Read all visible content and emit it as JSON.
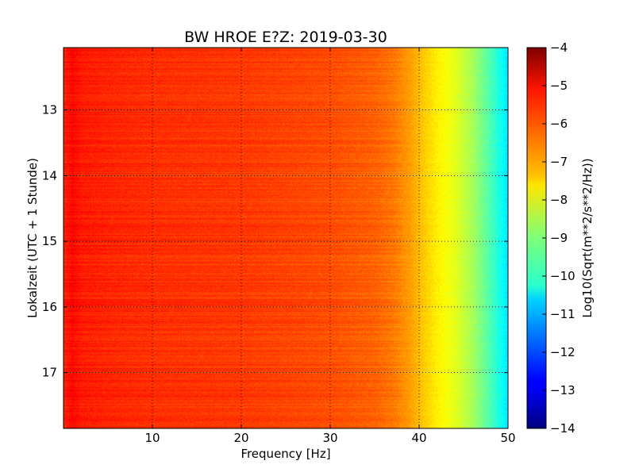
{
  "chart_data": {
    "type": "heatmap",
    "title": "BW HROE E?Z: 2019-03-30",
    "xlabel": "Frequency [Hz]",
    "ylabel": "Lokalzeit (UTC + 1 Stunde)",
    "colorbar_label": "Log10(Sqrt(m**2/s**2/Hz))",
    "xlim": [
      0,
      50
    ],
    "ylim": [
      12.05,
      17.85
    ],
    "y_inverted": true,
    "x_ticks": [
      10,
      20,
      30,
      40,
      50
    ],
    "y_ticks": [
      13,
      14,
      15,
      16,
      17
    ],
    "clim": [
      -14,
      -4
    ],
    "colorbar_ticks": [
      -4,
      -5,
      -6,
      -7,
      -8,
      -9,
      -10,
      -11,
      -12,
      -13,
      -14
    ],
    "colormap": "jet",
    "grid": true,
    "frequency_profile": {
      "frequencies": [
        0,
        1,
        2,
        5,
        10,
        20,
        30,
        35,
        37,
        39,
        40,
        42,
        44,
        46,
        48,
        50
      ],
      "values": [
        -5.6,
        -5.3,
        -5.5,
        -5.6,
        -5.7,
        -5.8,
        -6.0,
        -6.2,
        -6.4,
        -6.8,
        -7.1,
        -7.6,
        -8.0,
        -8.6,
        -9.5,
        -10.5
      ]
    }
  }
}
